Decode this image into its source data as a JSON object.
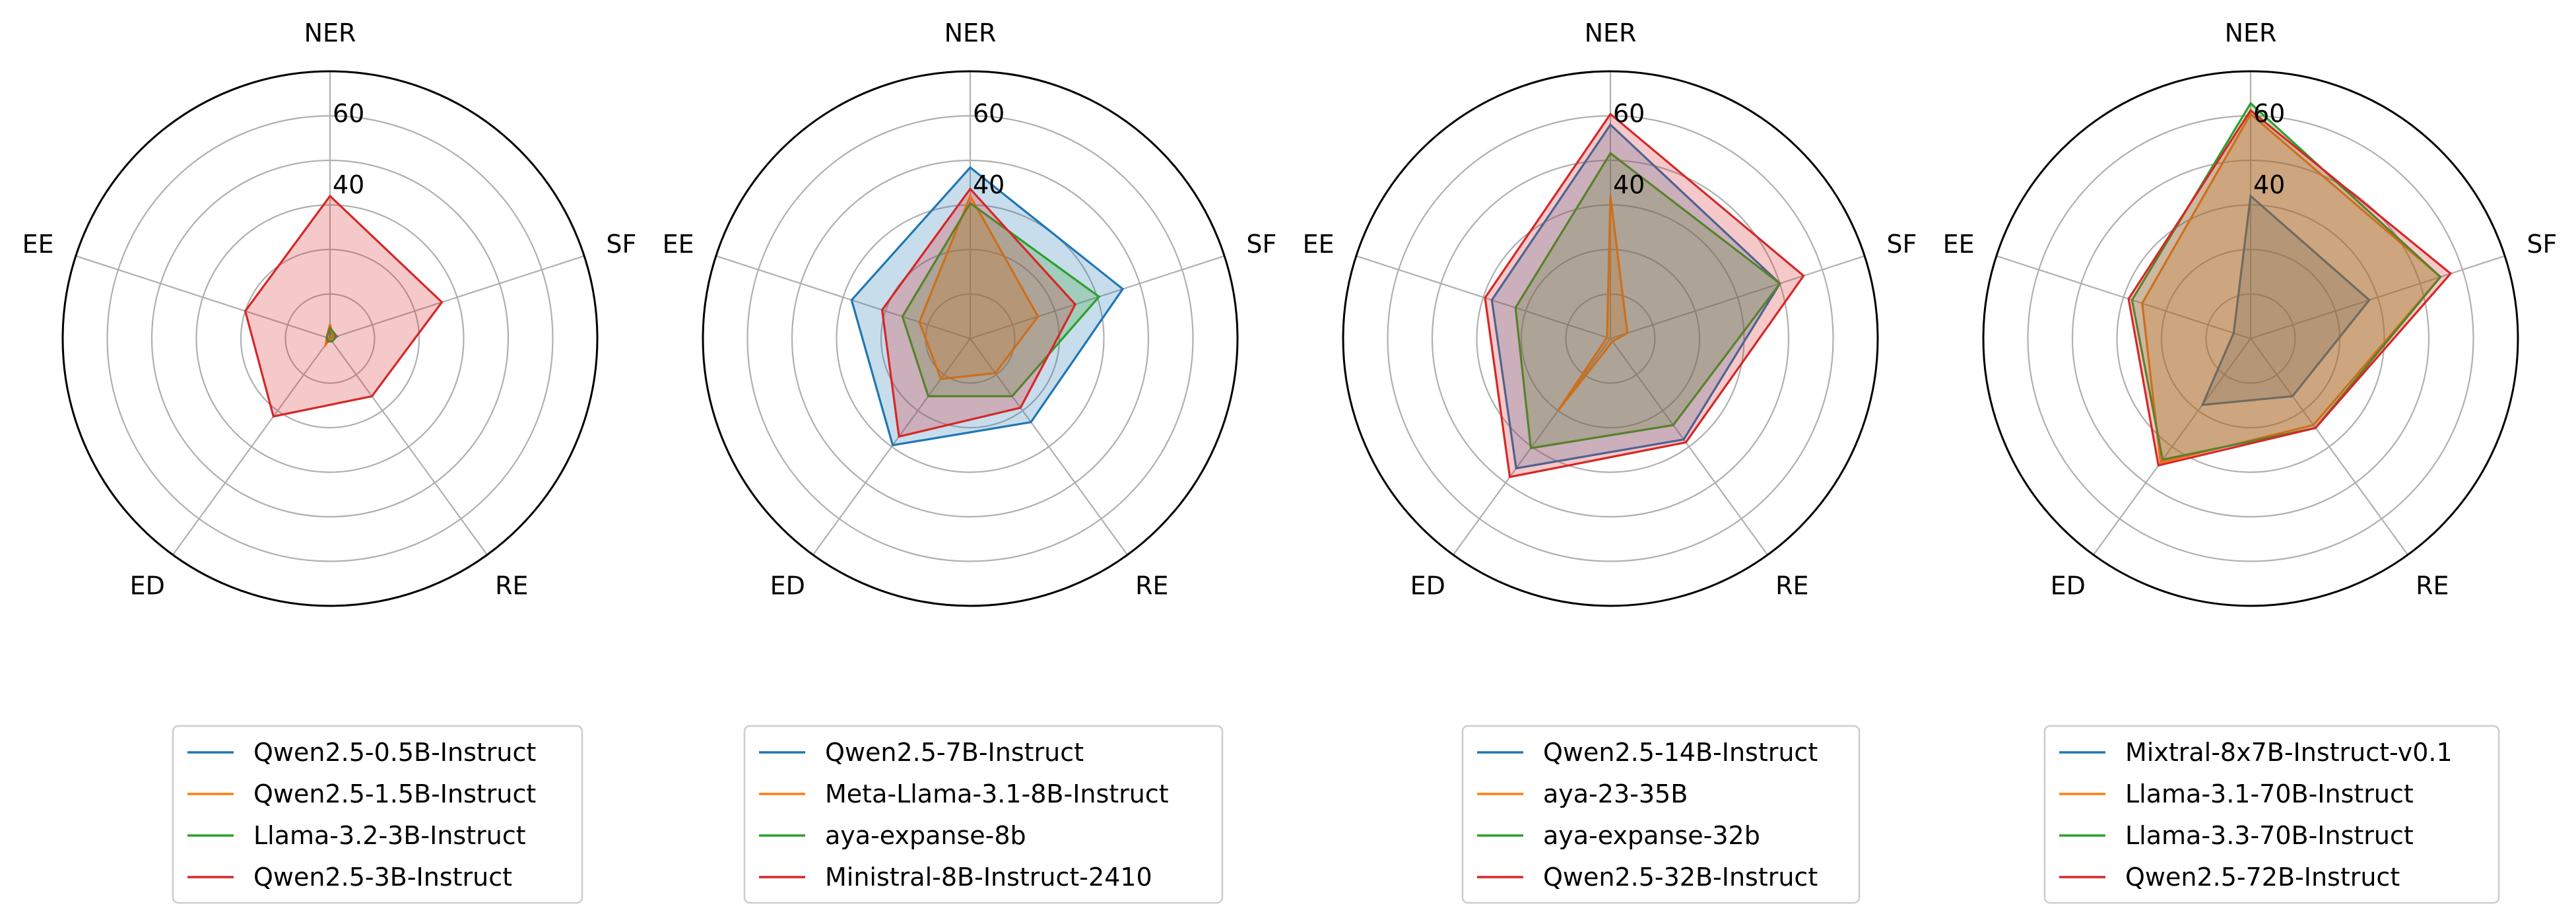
{
  "chart_data": [
    {
      "type": "radar",
      "axes": [
        "NER",
        "SF",
        "RE",
        "ED",
        "EE"
      ],
      "rticks": [
        "40",
        "60"
      ],
      "rlim": [
        0,
        75
      ],
      "series": [
        {
          "name": "Qwen2.5-0.5B-Instruct",
          "color": "#1f77b4",
          "values": [
            2,
            2,
            0,
            0,
            0
          ]
        },
        {
          "name": "Qwen2.5-1.5B-Instruct",
          "color": "#ff7f0e",
          "values": [
            4,
            1,
            0,
            2,
            1
          ]
        },
        {
          "name": "Llama-3.2-3B-Instruct",
          "color": "#2ca02c",
          "values": [
            3,
            2,
            1,
            1,
            1
          ]
        },
        {
          "name": "Qwen2.5-3B-Instruct",
          "color": "#d62728",
          "values": [
            40,
            33,
            20,
            27,
            25
          ]
        }
      ]
    },
    {
      "type": "radar",
      "axes": [
        "NER",
        "SF",
        "RE",
        "ED",
        "EE"
      ],
      "rticks": [
        "40",
        "60"
      ],
      "rlim": [
        0,
        75
      ],
      "series": [
        {
          "name": "Qwen2.5-7B-Instruct",
          "color": "#1f77b4",
          "values": [
            48,
            45,
            29,
            37,
            35
          ]
        },
        {
          "name": "Meta-Llama-3.1-8B-Instruct",
          "color": "#ff7f0e",
          "values": [
            40,
            20,
            12,
            14,
            15
          ]
        },
        {
          "name": "aya-expanse-8b",
          "color": "#2ca02c",
          "values": [
            38,
            38,
            20,
            20,
            20
          ]
        },
        {
          "name": "Ministral-8B-Instruct-2410",
          "color": "#d62728",
          "values": [
            42,
            31,
            24,
            34,
            26
          ]
        }
      ]
    },
    {
      "type": "radar",
      "axes": [
        "NER",
        "SF",
        "RE",
        "ED",
        "EE"
      ],
      "rticks": [
        "40",
        "60"
      ],
      "rlim": [
        0,
        75
      ],
      "series": [
        {
          "name": "Qwen2.5-14B-Instruct",
          "color": "#1f77b4",
          "values": [
            60,
            50,
            35,
            45,
            35
          ]
        },
        {
          "name": "aya-23-35B",
          "color": "#ff7f0e",
          "values": [
            40,
            5,
            1,
            25,
            1
          ]
        },
        {
          "name": "aya-expanse-32b",
          "color": "#2ca02c",
          "values": [
            52,
            50,
            30,
            38,
            28
          ]
        },
        {
          "name": "Qwen2.5-32B-Instruct",
          "color": "#d62728",
          "values": [
            63,
            57,
            36,
            48,
            37
          ]
        }
      ]
    },
    {
      "type": "radar",
      "axes": [
        "NER",
        "SF",
        "RE",
        "ED",
        "EE"
      ],
      "rticks": [
        "40",
        "60"
      ],
      "rlim": [
        0,
        75
      ],
      "series": [
        {
          "name": "Mixtral-8x7B-Instruct-v0.1",
          "color": "#1f77b4",
          "values": [
            40,
            35,
            20,
            23,
            5
          ]
        },
        {
          "name": "Llama-3.1-70B-Instruct",
          "color": "#ff7f0e",
          "values": [
            63,
            56,
            30,
            43,
            32
          ]
        },
        {
          "name": "Llama-3.3-70B-Instruct",
          "color": "#2ca02c",
          "values": [
            66,
            56,
            31,
            42,
            35
          ]
        },
        {
          "name": "Qwen2.5-72B-Instruct",
          "color": "#d62728",
          "values": [
            64,
            59,
            31,
            44,
            36
          ]
        }
      ]
    }
  ]
}
